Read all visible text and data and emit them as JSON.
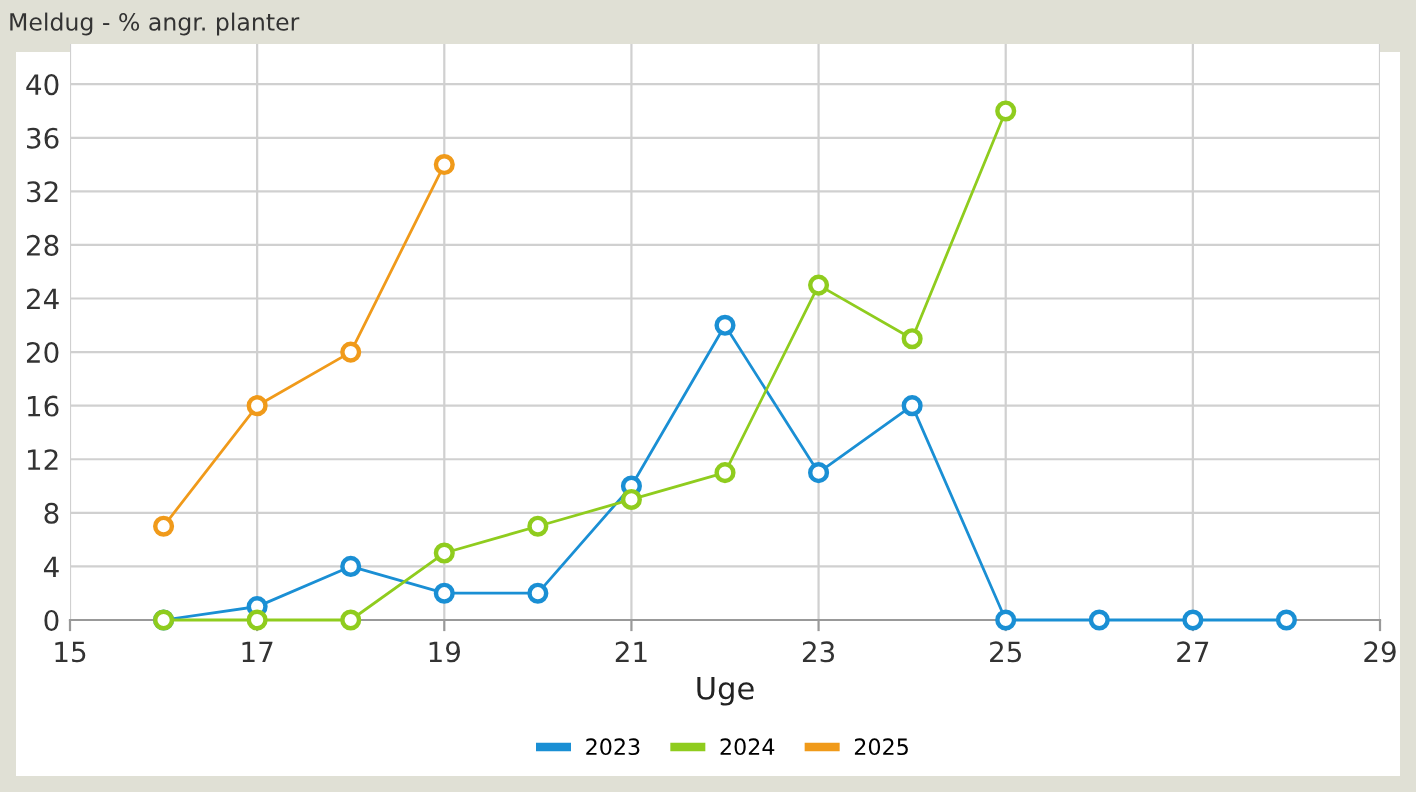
{
  "chart_data": {
    "type": "line",
    "title": "Meldug - % angr. planter",
    "xlabel": "Uge",
    "xlim": [
      15,
      29
    ],
    "xticks": [
      15,
      17,
      19,
      21,
      23,
      25,
      27,
      29
    ],
    "ylim": [
      0,
      43
    ],
    "yticks": [
      0,
      4,
      8,
      12,
      16,
      20,
      24,
      28,
      32,
      36,
      40
    ],
    "grid": true,
    "legend": "bottom",
    "marker": "circle",
    "line_style": "solid",
    "series": [
      {
        "name": "2023",
        "color": "#1a8fd4",
        "x": [
          16,
          17,
          18,
          19,
          20,
          21,
          22,
          23,
          24,
          25,
          26,
          27,
          28
        ],
        "values": [
          0,
          1,
          4,
          2,
          2,
          10,
          22,
          11,
          16,
          0,
          0,
          0,
          0
        ]
      },
      {
        "name": "2024",
        "color": "#8fcc1e",
        "x": [
          16,
          17,
          18,
          19,
          20,
          21,
          22,
          23,
          24,
          25
        ],
        "values": [
          0,
          0,
          0,
          5,
          7,
          9,
          11,
          25,
          21,
          38
        ]
      },
      {
        "name": "2025",
        "color": "#f09a1a",
        "x": [
          16,
          17,
          18,
          19
        ],
        "values": [
          7,
          16,
          20,
          34
        ]
      }
    ]
  }
}
